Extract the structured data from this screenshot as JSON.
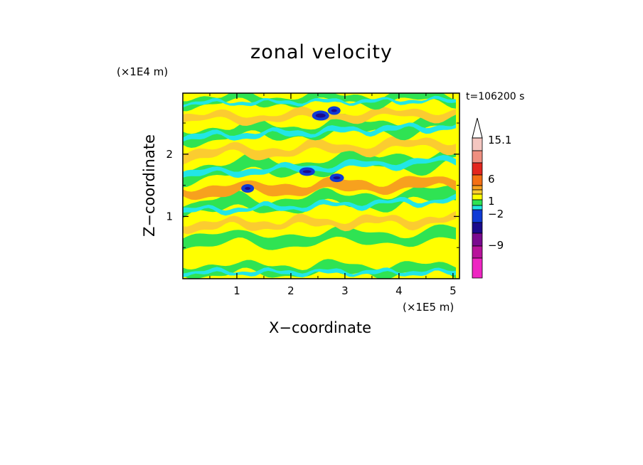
{
  "chart_data": {
    "type": "heatmap",
    "title": "zonal velocity",
    "xlabel": "X−coordinate",
    "ylabel": "Z−coordinate",
    "x_unit": "(×1E5 m)",
    "y_unit": "(×1E4 m)",
    "time_label": "t=106200 s",
    "xlim": [
      0,
      5.12
    ],
    "ylim": [
      0,
      2.98
    ],
    "x_ticks": [
      1,
      2,
      3,
      4,
      5
    ],
    "y_ticks": [
      1,
      2
    ],
    "x_tick_labels": [
      "1",
      "2",
      "3",
      "4",
      "5"
    ],
    "y_tick_labels": [
      "1",
      "2"
    ],
    "colorbar": {
      "label_values": [
        "15.1",
        "6",
        "1",
        "−2",
        "−9"
      ],
      "levels_from_top": [
        {
          "color": "#f4c6c0"
        },
        {
          "color": "#ef8f80"
        },
        {
          "color": "#e3261e"
        },
        {
          "color": "#f46f14"
        },
        {
          "color": "#f7a11e"
        },
        {
          "color": "#fbcc30"
        },
        {
          "color": "#ffff00"
        },
        {
          "color": "#2fe353"
        },
        {
          "color": "#22e6e6"
        },
        {
          "color": "#0f3bd6"
        },
        {
          "color": "#1a0a8c"
        },
        {
          "color": "#7a0a8f"
        },
        {
          "color": "#b8139b"
        },
        {
          "color": "#ee26c2"
        }
      ]
    },
    "field_bands": [
      {
        "z": 0.05,
        "value": "cyan/green"
      },
      {
        "z": 0.4,
        "value": "yellow"
      },
      {
        "z": 0.7,
        "value": "green"
      },
      {
        "z": 1.05,
        "value": "yellow/orange"
      },
      {
        "z": 1.35,
        "value": "green/cyan"
      },
      {
        "z": 1.6,
        "value": "orange"
      },
      {
        "z": 1.9,
        "value": "cyan/green"
      },
      {
        "z": 2.2,
        "value": "yellow/orange"
      },
      {
        "z": 2.5,
        "value": "cyan/green"
      },
      {
        "z": 2.8,
        "value": "yellow/orange"
      }
    ]
  }
}
